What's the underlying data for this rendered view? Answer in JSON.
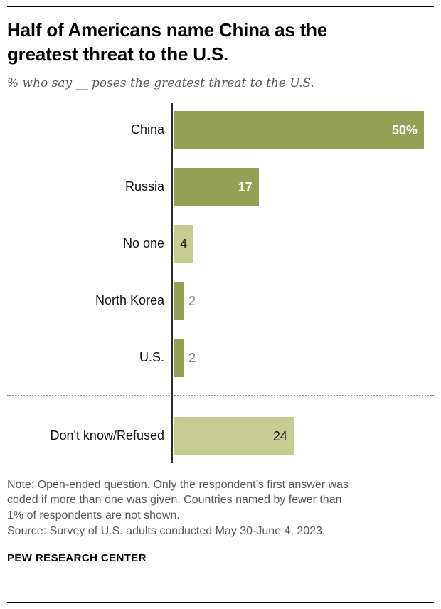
{
  "colors": {
    "dark_olive": "#94A053",
    "light_olive": "#C6CC92",
    "axis": "#2E2E2E",
    "value_gray": "#808285",
    "note_gray": "#58585A"
  },
  "header": {
    "title": "Half of Americans name China as the greatest threat to the U.S.",
    "title_lines": [
      "Half of Americans name China as the",
      "greatest threat to the U.S."
    ],
    "subtitle": "% who say __ poses the greatest threat to the U.S."
  },
  "chart_data": {
    "type": "bar",
    "orientation": "horizontal",
    "title": "Half of Americans name China as the greatest threat to the U.S.",
    "subtitle": "% who say __ poses the greatest threat to the U.S.",
    "xlim": [
      0,
      52
    ],
    "grid": false,
    "legend": "none",
    "categories": [
      "China",
      "Russia",
      "No one",
      "North Korea",
      "U.S.",
      "Don't know/Refused"
    ],
    "values": [
      50,
      17,
      4,
      2,
      2,
      24
    ],
    "bars": [
      {
        "category": "China",
        "value": 50,
        "label": "50%",
        "shade": "dark",
        "label_placement": "inside",
        "label_color": "#FFFFFF"
      },
      {
        "category": "Russia",
        "value": 17,
        "label": "17",
        "shade": "dark",
        "label_placement": "inside",
        "label_color": "#FFFFFF"
      },
      {
        "category": "No one",
        "value": 4,
        "label": "4",
        "shade": "light",
        "label_placement": "inside",
        "label_color": "#1A1A1A"
      },
      {
        "category": "North Korea",
        "value": 2,
        "label": "2",
        "shade": "dark",
        "label_placement": "outside",
        "label_color": "#808285"
      },
      {
        "category": "U.S.",
        "value": 2,
        "label": "2",
        "shade": "dark",
        "label_placement": "outside",
        "label_color": "#808285"
      },
      {
        "category": "Don't know/Refused",
        "value": 24,
        "label": "24",
        "shade": "light",
        "label_placement": "inside",
        "label_color": "#1A1A1A"
      }
    ],
    "divider_before_category": "Don't know/Refused"
  },
  "footer": {
    "note_lines": [
      "Note: Open-ended question. Only the respondent’s first answer was",
      "coded if more than one was given. Countries named by fewer than",
      "1% of respondents are not shown."
    ],
    "source": "Source: Survey of U.S. adults conducted May 30-June 4, 2023.",
    "brand": "PEW RESEARCH CENTER"
  }
}
